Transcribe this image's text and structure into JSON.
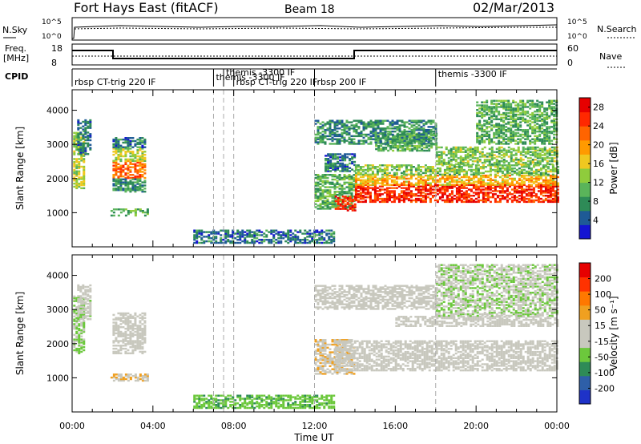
{
  "header": {
    "title": "Fort Hays East (fitACF)",
    "beam": "Beam 18",
    "date": "02/Mar/2013"
  },
  "top_panels": {
    "nsky_label": "N.Sky",
    "nsky_ticks": [
      "10^5",
      "10^0"
    ],
    "nsearch_label": "N.Search",
    "nsearch_ticks": [
      "10^5",
      "10^0"
    ],
    "freq_label": "Freq.",
    "freq_unit": "[MHz]",
    "freq_ticks": [
      "18",
      "8"
    ],
    "nave_label": "Nave",
    "nave_ticks": [
      "60",
      "0"
    ],
    "cpid_label": "CPID",
    "cpid_segments": [
      {
        "start": 0.0,
        "label": "rbsp CT-trig 220 IF"
      },
      {
        "start": 7.0,
        "label": "themis -3300 IF"
      },
      {
        "start": 7.5,
        "label": "themis -3300 IF"
      },
      {
        "start": 8.0,
        "label": "rbsp CT-trig 220 IF"
      },
      {
        "start": 12.0,
        "label": "rbsp 200 IF"
      },
      {
        "start": 18.0,
        "label": "themis -3300 IF"
      }
    ]
  },
  "colors": {
    "power_scale": [
      "#1414d2",
      "#1e5a96",
      "#2e8b57",
      "#5ab45a",
      "#8fcc3c",
      "#f0c820",
      "#ff9a00",
      "#ff6400",
      "#ff2800",
      "#e60000"
    ],
    "velocity_scale": [
      "#1e32c8",
      "#2e5fa8",
      "#2e8b57",
      "#6cc83c",
      "#c8c8be",
      "#c8c8be",
      "#f0a020",
      "#ff7800",
      "#ff3200",
      "#e60000"
    ],
    "ground_scatter": "#c8c8be"
  },
  "chart_data": [
    {
      "type": "heatmap",
      "name": "power-panel",
      "ylabel": "Slant Range [km]",
      "ylim": [
        0,
        4600
      ],
      "yticks": [
        "1000",
        "2000",
        "3000",
        "4000"
      ],
      "xlim": [
        0,
        24
      ],
      "xticks": [
        "00:00",
        "04:00",
        "08:00",
        "12:00",
        "16:00",
        "20:00",
        "00:00"
      ],
      "colorbar_label": "Power [dB]",
      "colorbar_ticks": [
        "4",
        "8",
        "12",
        "16",
        "20",
        "24",
        "28"
      ],
      "colorbar_range": [
        0,
        30
      ],
      "regions": [
        {
          "t0": 0.05,
          "t1": 0.6,
          "r0": 1700,
          "r1": 3400,
          "value": 14
        },
        {
          "t0": 0.25,
          "t1": 0.9,
          "r0": 2700,
          "r1": 3700,
          "value": 6
        },
        {
          "t0": 2.0,
          "t1": 3.6,
          "r0": 2000,
          "r1": 2500,
          "value": 22
        },
        {
          "t0": 2.0,
          "t1": 3.6,
          "r0": 2500,
          "r1": 2900,
          "value": 14
        },
        {
          "t0": 2.0,
          "t1": 3.6,
          "r0": 1600,
          "r1": 2000,
          "value": 8
        },
        {
          "t0": 2.0,
          "t1": 3.6,
          "r0": 2900,
          "r1": 3200,
          "value": 6
        },
        {
          "t0": 1.9,
          "t1": 3.8,
          "r0": 900,
          "r1": 1100,
          "value": 10
        },
        {
          "t0": 12.0,
          "t1": 14.0,
          "r0": 1100,
          "r1": 2100,
          "value": 10
        },
        {
          "t0": 13.0,
          "t1": 14.0,
          "r0": 1050,
          "r1": 1500,
          "value": 26
        },
        {
          "t0": 12.5,
          "t1": 14.0,
          "r0": 2200,
          "r1": 2700,
          "value": 6
        },
        {
          "t0": 14.0,
          "t1": 24.0,
          "r0": 1300,
          "r1": 1800,
          "value": 26
        },
        {
          "t0": 14.0,
          "t1": 24.0,
          "r0": 1800,
          "r1": 2100,
          "value": 18
        },
        {
          "t0": 14.0,
          "t1": 24.0,
          "r0": 2100,
          "r1": 2400,
          "value": 12
        },
        {
          "t0": 18.0,
          "t1": 24.0,
          "r0": 2400,
          "r1": 2900,
          "value": 12
        },
        {
          "t0": 15.0,
          "t1": 18.0,
          "r0": 2800,
          "r1": 3300,
          "value": 10
        },
        {
          "t0": 12.0,
          "t1": 18.0,
          "r0": 3000,
          "r1": 3700,
          "value": 8
        },
        {
          "t0": 20.0,
          "t1": 24.0,
          "r0": 3000,
          "r1": 4300,
          "value": 10
        },
        {
          "t0": 6.0,
          "t1": 13.0,
          "r0": 100,
          "r1": 500,
          "value": 6
        }
      ]
    },
    {
      "type": "heatmap",
      "name": "velocity-panel",
      "ylabel": "Slant Range [km]",
      "ylim": [
        0,
        4600
      ],
      "yticks": [
        "1000",
        "2000",
        "3000",
        "4000"
      ],
      "xlim": [
        0,
        24
      ],
      "xlabel": "Time UT",
      "xticks": [
        "00:00",
        "04:00",
        "08:00",
        "12:00",
        "16:00",
        "20:00",
        "00:00"
      ],
      "colorbar_label": "Velocity [m s⁻¹]",
      "colorbar_ticks": [
        "200",
        "100",
        "50",
        "15",
        "-15",
        "-50",
        "-100",
        "-200"
      ],
      "colorbar_range": [
        -250,
        250
      ],
      "regions": [
        {
          "t0": 0.05,
          "t1": 0.6,
          "r0": 1700,
          "r1": 3400,
          "value": -60
        },
        {
          "t0": 0.25,
          "t1": 0.9,
          "r0": 2700,
          "r1": 3700,
          "value": -30
        },
        {
          "t0": 2.0,
          "t1": 3.6,
          "r0": 1700,
          "r1": 2900,
          "value": 0
        },
        {
          "t0": 1.9,
          "t1": 3.8,
          "r0": 900,
          "r1": 1100,
          "value": 40
        },
        {
          "t0": 12.0,
          "t1": 14.0,
          "r0": 1100,
          "r1": 2100,
          "value": 40
        },
        {
          "t0": 13.0,
          "t1": 24.0,
          "r0": 1200,
          "r1": 2100,
          "value": 0
        },
        {
          "t0": 16.0,
          "t1": 24.0,
          "r0": 2500,
          "r1": 2800,
          "value": 0
        },
        {
          "t0": 18.0,
          "t1": 24.0,
          "r0": 2800,
          "r1": 4300,
          "value": -40
        },
        {
          "t0": 12.0,
          "t1": 18.0,
          "r0": 3000,
          "r1": 3700,
          "value": 0
        },
        {
          "t0": 6.0,
          "t1": 13.0,
          "r0": 100,
          "r1": 500,
          "value": -80
        }
      ]
    }
  ]
}
